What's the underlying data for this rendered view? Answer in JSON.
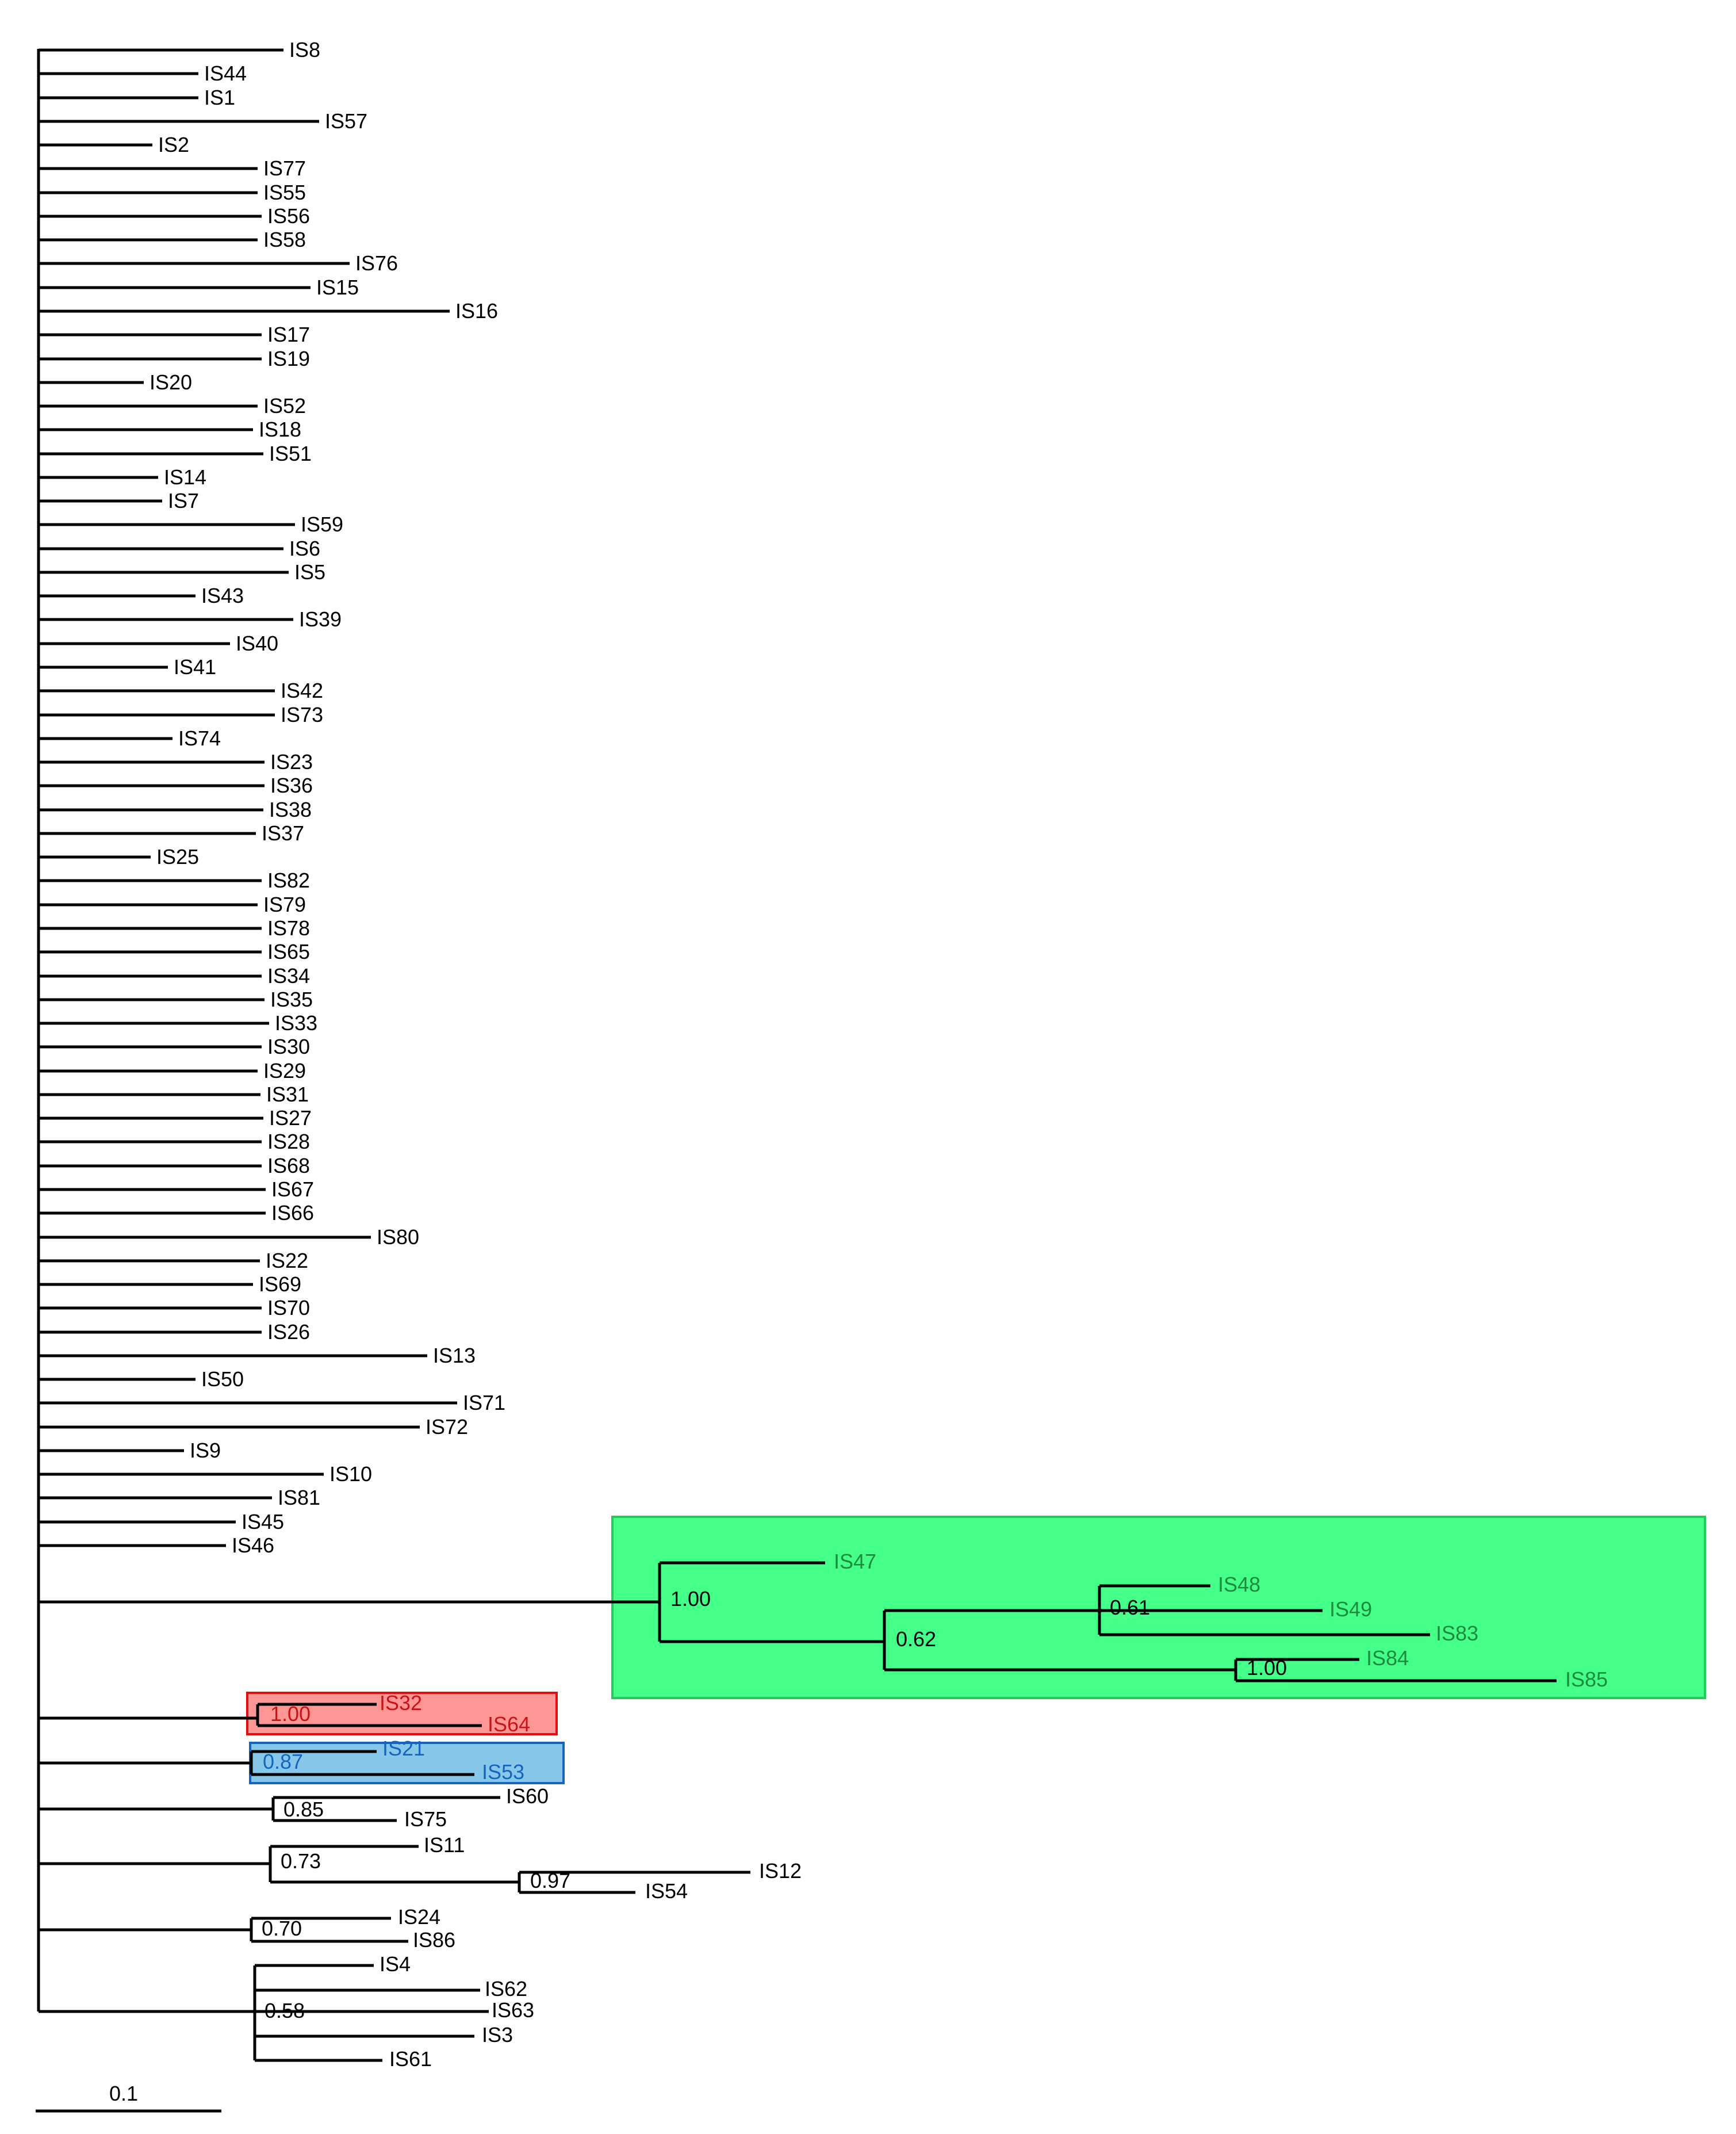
{
  "leaves": [
    "IS8",
    "IS44",
    "IS1",
    "IS57",
    "IS2",
    "IS77",
    "IS55",
    "IS56",
    "IS58",
    "IS76",
    "IS15",
    "IS16",
    "IS17",
    "IS19",
    "IS20",
    "IS52",
    "IS18",
    "IS51",
    "IS14",
    "IS7",
    "IS59",
    "IS6",
    "IS5",
    "IS43",
    "IS39",
    "IS40",
    "IS41",
    "IS42",
    "IS73",
    "IS74",
    "IS23",
    "IS36",
    "IS38",
    "IS37",
    "IS25",
    "IS82",
    "IS79",
    "IS78",
    "IS65",
    "IS34",
    "IS35",
    "IS33",
    "IS30",
    "IS29",
    "IS31",
    "IS27",
    "IS28",
    "IS68",
    "IS67",
    "IS66",
    "IS80",
    "IS22",
    "IS69",
    "IS70",
    "IS26",
    "IS13",
    "IS50",
    "IS71",
    "IS72",
    "IS9",
    "IS10",
    "IS81",
    "IS45",
    "IS46"
  ],
  "clades": {
    "green": {
      "color": "#44ff88",
      "border": "#22cc55",
      "text_color": "#1f8a3f",
      "labels": [
        "IS47",
        "IS48",
        "IS49",
        "IS83",
        "IS84",
        "IS85"
      ],
      "supports": [
        "1.00",
        "0.62",
        "0.61",
        "1.00"
      ]
    },
    "red": {
      "color": "#ff9696",
      "border": "#e01010",
      "text_color": "#c81414",
      "labels": [
        "IS32",
        "IS64"
      ],
      "support": "1.00"
    },
    "blue": {
      "color": "#87c7ea",
      "border": "#1565c0",
      "text_color": "#1565c0",
      "labels": [
        "IS21",
        "IS53"
      ],
      "support": "0.87"
    },
    "c085": {
      "labels": [
        "IS60",
        "IS75"
      ],
      "support": "0.85"
    },
    "c073": {
      "labels": [
        "IS11",
        "IS12",
        "IS54"
      ],
      "supports": [
        "0.73",
        "0.97"
      ]
    },
    "c070": {
      "labels": [
        "IS24",
        "IS86"
      ],
      "support": "0.70"
    },
    "c058": {
      "labels": [
        "IS4",
        "IS62",
        "IS63",
        "IS3",
        "IS61"
      ],
      "support": "0.58"
    }
  },
  "scale_bar": {
    "label": "0.1"
  }
}
